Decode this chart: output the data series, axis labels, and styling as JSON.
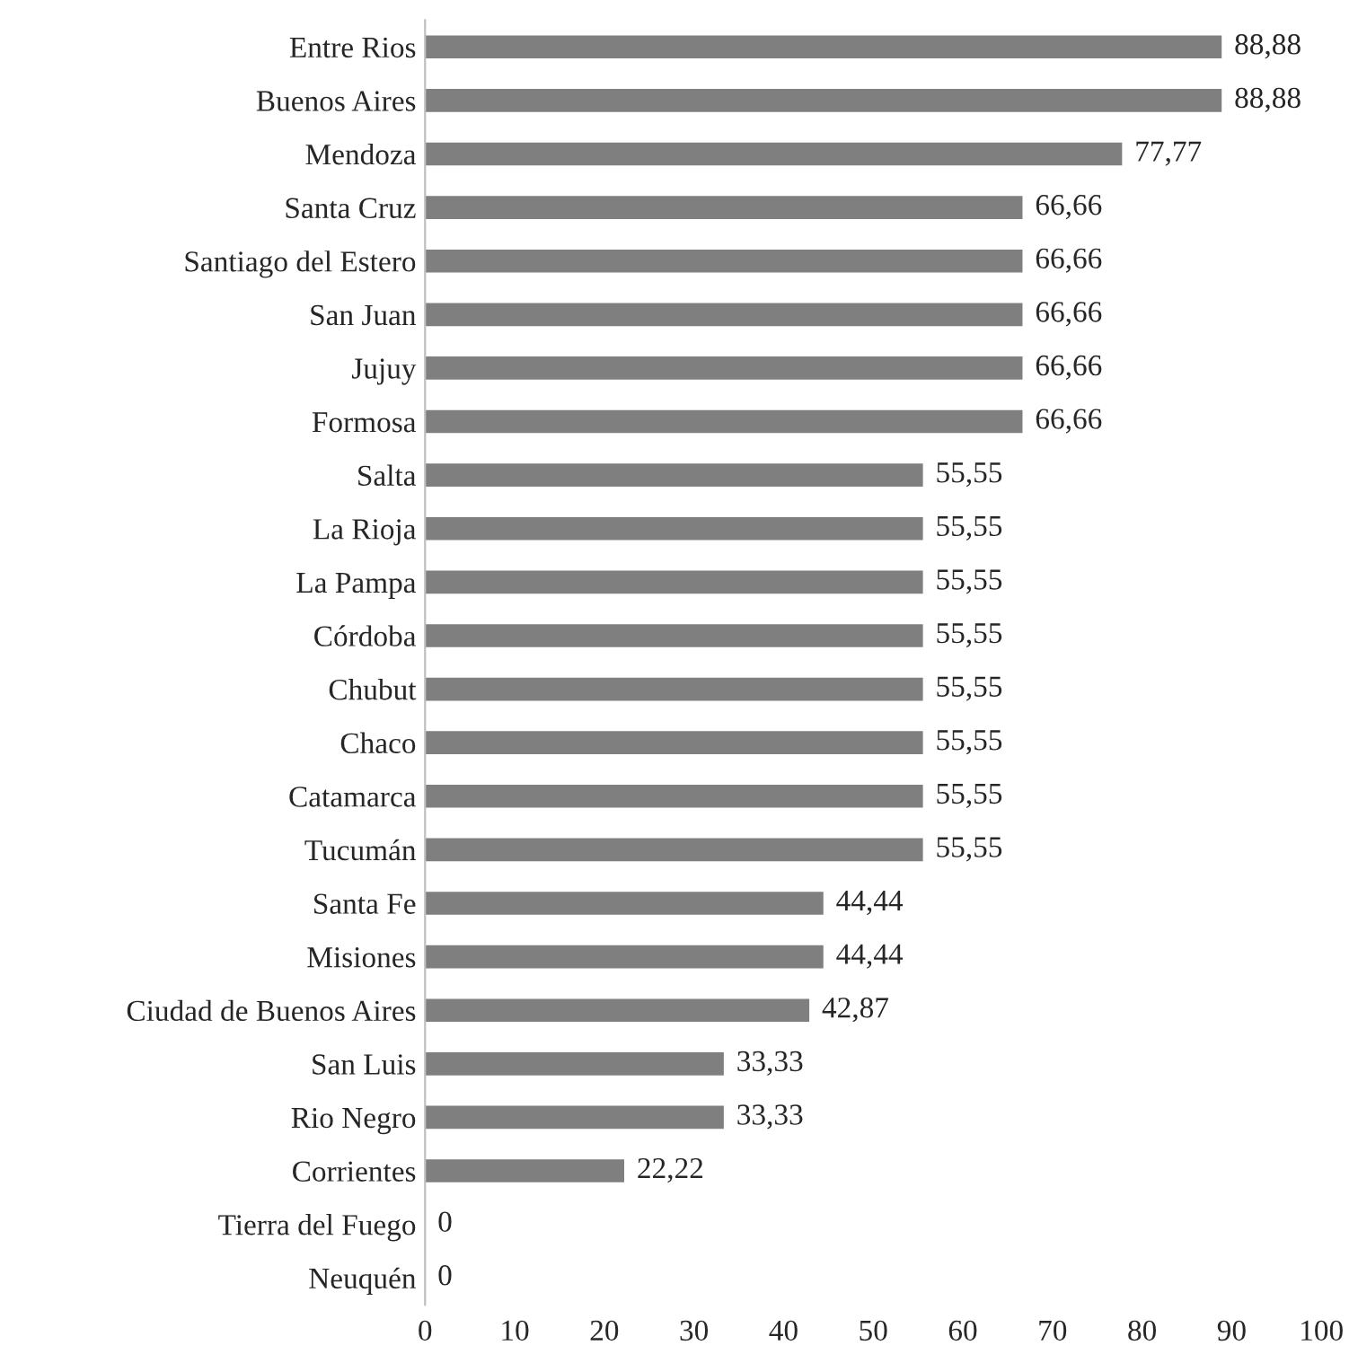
{
  "chart_data": {
    "type": "bar",
    "orientation": "horizontal",
    "categories": [
      "Entre Rios",
      "Buenos Aires",
      "Mendoza",
      "Santa Cruz",
      "Santiago del Estero",
      "San Juan",
      "Jujuy",
      "Formosa",
      "Salta",
      "La Rioja",
      "La Pampa",
      "Córdoba",
      "Chubut",
      "Chaco",
      "Catamarca",
      "Tucumán",
      "Santa Fe",
      "Misiones",
      "Ciudad de Buenos Aires",
      "San Luis",
      "Rio Negro",
      "Corrientes",
      "Tierra del Fuego",
      "Neuquén"
    ],
    "values": [
      88.88,
      88.88,
      77.77,
      66.66,
      66.66,
      66.66,
      66.66,
      66.66,
      55.55,
      55.55,
      55.55,
      55.55,
      55.55,
      55.55,
      55.55,
      55.55,
      44.44,
      44.44,
      42.87,
      33.33,
      33.33,
      22.22,
      0,
      0
    ],
    "value_labels": [
      "88,88",
      "88,88",
      "77,77",
      "66,66",
      "66,66",
      "66,66",
      "66,66",
      "66,66",
      "55,55",
      "55,55",
      "55,55",
      "55,55",
      "55,55",
      "55,55",
      "55,55",
      "55,55",
      "44,44",
      "44,44",
      "42,87",
      "33,33",
      "33,33",
      "22,22",
      "0",
      "0"
    ],
    "color": "#7f7f7f",
    "xlim": [
      0,
      100
    ],
    "xticks": [
      0,
      10,
      20,
      30,
      40,
      50,
      60,
      70,
      80,
      90,
      100
    ]
  }
}
